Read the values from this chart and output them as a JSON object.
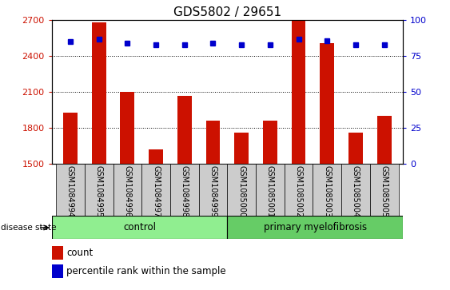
{
  "title": "GDS5802 / 29651",
  "samples": [
    "GSM1084994",
    "GSM1084995",
    "GSM1084996",
    "GSM1084997",
    "GSM1084998",
    "GSM1084999",
    "GSM1085000",
    "GSM1085001",
    "GSM1085002",
    "GSM1085003",
    "GSM1085004",
    "GSM1085005"
  ],
  "counts": [
    1930,
    2680,
    2100,
    1620,
    2070,
    1860,
    1760,
    1860,
    2695,
    2510,
    1760,
    1900
  ],
  "percentiles": [
    85,
    87,
    84,
    83,
    83,
    84,
    83,
    83,
    87,
    86,
    83,
    83
  ],
  "groups": [
    {
      "label": "control",
      "n": 6,
      "color": "#90ee90"
    },
    {
      "label": "primary myelofibrosis",
      "n": 6,
      "color": "#66cc66"
    }
  ],
  "ylim_left": [
    1500,
    2700
  ],
  "ylim_right": [
    0,
    100
  ],
  "yticks_left": [
    1500,
    1800,
    2100,
    2400,
    2700
  ],
  "yticks_right": [
    0,
    25,
    50,
    75,
    100
  ],
  "bar_color": "#cc1100",
  "dot_color": "#0000cc",
  "bar_width": 0.5,
  "grid_color": "#000000",
  "grid_linewidth": 0.7,
  "left_label_color": "#cc1100",
  "right_label_color": "#0000cc",
  "legend_items": [
    {
      "label": "count",
      "color": "#cc1100"
    },
    {
      "label": "percentile rank within the sample",
      "color": "#0000cc"
    }
  ],
  "disease_state_label": "disease state",
  "tick_area_color": "#cccccc",
  "title_fontsize": 11,
  "tick_fontsize": 7,
  "axis_label_fontsize": 8
}
